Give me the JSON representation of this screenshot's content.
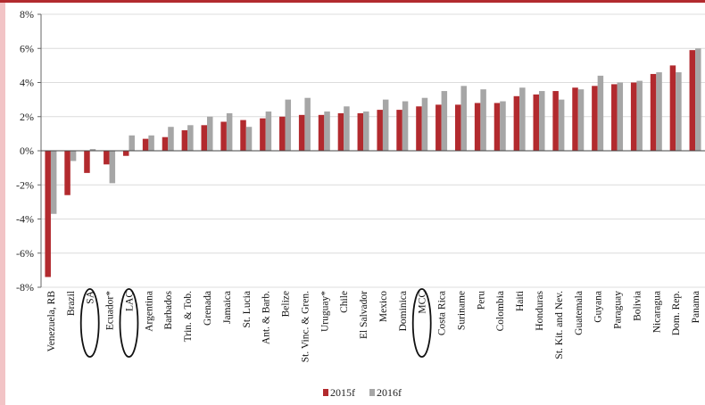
{
  "chart_data": {
    "type": "bar",
    "title": "",
    "xlabel": "",
    "ylabel": "",
    "ylim": [
      -8,
      8
    ],
    "y_ticks": [
      "-8%",
      "-6%",
      "-4%",
      "-2%",
      "0%",
      "2%",
      "4%",
      "6%",
      "8%"
    ],
    "grid": true,
    "legend_position": "bottom",
    "categories": [
      "Venezuela, RB",
      "Brazil",
      "SA",
      "Ecuador*",
      "LAC",
      "Argentina",
      "Barbados",
      "Trin. & Tob.",
      "Grenada",
      "Jamaica",
      "St. Lucia",
      "Ant. & Barb.",
      "Belize",
      "St. Vinc. & Gren.",
      "Uruguay*",
      "Chile",
      "El Salvador",
      "Mexico",
      "Dominica",
      "MCC",
      "Costa Rica",
      "Suriname",
      "Peru",
      "Colombia",
      "Haiti",
      "Honduras",
      "St. Kit. and Nev.",
      "Guatemala",
      "Guyana",
      "Paraguay",
      "Bolivia",
      "Nicaragua",
      "Dom. Rep.",
      "Panama"
    ],
    "circled_categories": [
      "SA",
      "LAC",
      "MCC"
    ],
    "series": [
      {
        "name": "2015f",
        "color": "#b22a2e",
        "values": [
          -7.4,
          -2.6,
          -1.3,
          -0.8,
          -0.3,
          0.7,
          0.8,
          1.2,
          1.5,
          1.7,
          1.8,
          1.9,
          2.0,
          2.1,
          2.1,
          2.2,
          2.2,
          2.4,
          2.4,
          2.6,
          2.7,
          2.7,
          2.8,
          2.8,
          3.2,
          3.3,
          3.5,
          3.7,
          3.8,
          3.9,
          4.0,
          4.5,
          5.0,
          5.9
        ]
      },
      {
        "name": "2016f",
        "color": "#a6a6a6",
        "values": [
          -3.7,
          -0.6,
          0.1,
          -1.9,
          0.9,
          0.9,
          1.4,
          1.5,
          2.0,
          2.2,
          1.4,
          2.3,
          3.0,
          3.1,
          2.3,
          2.6,
          2.3,
          3.0,
          2.9,
          3.1,
          3.5,
          3.8,
          3.6,
          2.9,
          3.7,
          3.5,
          3.0,
          3.6,
          4.4,
          4.0,
          4.1,
          4.6,
          4.6,
          6.0
        ]
      }
    ]
  }
}
